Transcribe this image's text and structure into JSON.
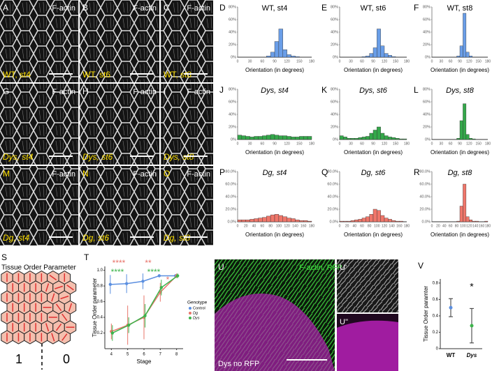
{
  "image_panels": [
    {
      "label": "A",
      "stain": "F-actin",
      "caption": "WT, st4"
    },
    {
      "label": "B",
      "stain": "F-actin",
      "caption": "WT, st6"
    },
    {
      "label": "C",
      "stain": "F-actin",
      "caption": "WT, st8"
    },
    {
      "label": "G",
      "stain": "F-actin",
      "caption": "Dys, st4"
    },
    {
      "label": "H",
      "stain": "F-actin",
      "caption": "Dys, st6"
    },
    {
      "label": "I",
      "stain": "F-actin",
      "caption": "Dys, st8"
    },
    {
      "label": "M",
      "stain": "F-actin",
      "caption": "Dg, st4"
    },
    {
      "label": "N",
      "stain": "F-actin",
      "caption": "Dg, st6"
    },
    {
      "label": "O",
      "stain": "F-actin",
      "caption": "Dg, st8"
    }
  ],
  "schematic": {
    "label": "S",
    "title": "Tissue Order Parameter",
    "left": "1",
    "right": "0"
  },
  "merge_panel": {
    "label": "U",
    "stain": "F-actin, RFP",
    "caption": "Dys no RFP",
    "inset1": "U'",
    "inset2": "U''"
  },
  "chart_data": [
    {
      "type": "histogram",
      "label": "D",
      "title": "WT, st4",
      "color": "#6a9ee8",
      "bins": [
        0,
        10,
        20,
        30,
        40,
        50,
        60,
        70,
        80,
        90,
        100,
        110,
        120,
        130,
        140,
        150,
        160,
        170,
        180
      ],
      "values": [
        0,
        0,
        0,
        0,
        0,
        0,
        0,
        2,
        8,
        25,
        45,
        12,
        4,
        2,
        1,
        0,
        0,
        0
      ],
      "xlim": [
        0,
        180
      ],
      "xticks": [
        0,
        30,
        60,
        90,
        120,
        150,
        180
      ],
      "ylim": [
        0,
        80
      ],
      "yticks": [
        {
          "value": 0,
          "label": "0%"
        },
        {
          "value": 20,
          "label": "20%"
        },
        {
          "value": 40,
          "label": "40%"
        },
        {
          "value": 60,
          "label": "60%"
        },
        {
          "value": 80,
          "label": "80%"
        }
      ],
      "xlabel": "Orientation (in degrees)"
    },
    {
      "type": "histogram",
      "label": "E",
      "title": "WT, st6",
      "color": "#6a9ee8",
      "bins": [
        0,
        10,
        20,
        30,
        40,
        50,
        60,
        70,
        80,
        90,
        100,
        110,
        120,
        130,
        140,
        150,
        160,
        170,
        180
      ],
      "values": [
        0,
        0,
        0,
        0,
        0,
        0,
        1,
        2,
        6,
        15,
        45,
        18,
        6,
        3,
        1,
        0,
        0,
        0
      ],
      "xlim": [
        0,
        180
      ],
      "xticks": [
        0,
        30,
        60,
        90,
        120,
        150,
        180
      ],
      "ylim": [
        0,
        80
      ],
      "yticks": [
        {
          "value": 0,
          "label": "0%"
        },
        {
          "value": 20,
          "label": "20%"
        },
        {
          "value": 40,
          "label": "40%"
        },
        {
          "value": 60,
          "label": "60%"
        },
        {
          "value": 80,
          "label": "80%"
        }
      ],
      "xlabel": "Orientation (in degrees)"
    },
    {
      "type": "histogram",
      "label": "F",
      "title": "WT, st8",
      "color": "#6a9ee8",
      "bins": [
        0,
        10,
        20,
        30,
        40,
        50,
        60,
        70,
        80,
        90,
        100,
        110,
        120,
        130,
        140,
        150,
        160,
        170,
        180
      ],
      "values": [
        0,
        0,
        0,
        0,
        0,
        0,
        0,
        0,
        2,
        18,
        70,
        8,
        2,
        0,
        0,
        0,
        0,
        0
      ],
      "xlim": [
        0,
        180
      ],
      "xticks": [
        0,
        30,
        60,
        90,
        120,
        150,
        180
      ],
      "ylim": [
        0,
        80
      ],
      "yticks": [
        {
          "value": 0,
          "label": "0%"
        },
        {
          "value": 20,
          "label": "20%"
        },
        {
          "value": 40,
          "label": "40%"
        },
        {
          "value": 60,
          "label": "60%"
        },
        {
          "value": 80,
          "label": "80%"
        }
      ],
      "xlabel": "Orientation (in degrees)"
    },
    {
      "type": "histogram",
      "label": "J",
      "title": "Dys, st4",
      "color": "#34a84a",
      "bins": [
        0,
        10,
        20,
        30,
        40,
        50,
        60,
        70,
        80,
        90,
        100,
        110,
        120,
        130,
        140,
        150,
        160,
        170,
        180
      ],
      "values": [
        7,
        6,
        5,
        4,
        5,
        5,
        6,
        7,
        8,
        7,
        6,
        6,
        5,
        4,
        4,
        5,
        5,
        5
      ],
      "xlim": [
        0,
        180
      ],
      "xticks": [
        0,
        30,
        60,
        90,
        120,
        150,
        180
      ],
      "ylim": [
        0,
        80
      ],
      "yticks": [
        {
          "value": 0,
          "label": "0%"
        },
        {
          "value": 20,
          "label": "20%"
        },
        {
          "value": 40,
          "label": "40%"
        },
        {
          "value": 60,
          "label": "60%"
        },
        {
          "value": 80,
          "label": "80%"
        }
      ],
      "xlabel": "Orientation (in degrees)"
    },
    {
      "type": "histogram",
      "label": "K",
      "title": "Dys, st6",
      "color": "#34a84a",
      "bins": [
        0,
        10,
        20,
        30,
        40,
        50,
        60,
        70,
        80,
        90,
        100,
        110,
        120,
        130,
        140,
        150,
        160,
        170,
        180
      ],
      "values": [
        6,
        4,
        2,
        2,
        2,
        3,
        4,
        5,
        10,
        15,
        20,
        10,
        6,
        4,
        3,
        2,
        1,
        1
      ],
      "xlim": [
        0,
        180
      ],
      "xticks": [
        0,
        30,
        60,
        90,
        120,
        150,
        180
      ],
      "ylim": [
        0,
        80
      ],
      "yticks": [
        {
          "value": 0,
          "label": "0%"
        },
        {
          "value": 20,
          "label": "20%"
        },
        {
          "value": 40,
          "label": "40%"
        },
        {
          "value": 60,
          "label": "60%"
        },
        {
          "value": 80,
          "label": "80%"
        }
      ],
      "xlabel": "Orientation (in degrees)"
    },
    {
      "type": "histogram",
      "label": "L",
      "title": "Dys, st8",
      "color": "#34a84a",
      "bins": [
        0,
        10,
        20,
        30,
        40,
        50,
        60,
        70,
        80,
        90,
        100,
        110,
        120,
        130,
        140,
        150,
        160,
        170,
        180
      ],
      "values": [
        0,
        0,
        0,
        0,
        0,
        0,
        0,
        0,
        2,
        30,
        57,
        8,
        2,
        1,
        0,
        0,
        0,
        0
      ],
      "xlim": [
        0,
        180
      ],
      "xticks": [
        0,
        30,
        60,
        90,
        120,
        150,
        180
      ],
      "ylim": [
        0,
        80
      ],
      "yticks": [
        {
          "value": 0,
          "label": "0%"
        },
        {
          "value": 20,
          "label": "20%"
        },
        {
          "value": 40,
          "label": "40%"
        },
        {
          "value": 60,
          "label": "60%"
        },
        {
          "value": 80,
          "label": "80%"
        }
      ],
      "xlabel": "Orientation (in degrees)"
    },
    {
      "type": "histogram",
      "label": "P",
      "title": "Dg, st4",
      "color": "#f0766a",
      "bins": [
        0,
        10,
        20,
        30,
        40,
        50,
        60,
        70,
        80,
        90,
        100,
        110,
        120,
        130,
        140,
        150,
        160,
        170,
        180
      ],
      "values": [
        3,
        3,
        3,
        4,
        5,
        6,
        7,
        9,
        11,
        12,
        10,
        8,
        6,
        5,
        3,
        2,
        2,
        1
      ],
      "xlim": [
        0,
        180
      ],
      "xticks": [
        0,
        20,
        40,
        60,
        80,
        100,
        120,
        140,
        160,
        180
      ],
      "ylim": [
        0,
        80
      ],
      "yticks": [
        {
          "value": 0,
          "label": "0.0%"
        },
        {
          "value": 20,
          "label": "20.0%"
        },
        {
          "value": 40,
          "label": "40.0%"
        },
        {
          "value": 60,
          "label": "60.0%"
        },
        {
          "value": 80,
          "label": "80.0%"
        }
      ],
      "xlabel": "Orientation (in degrees)"
    },
    {
      "type": "histogram",
      "label": "Q",
      "title": "Dg, st6",
      "color": "#f0766a",
      "bins": [
        0,
        10,
        20,
        30,
        40,
        50,
        60,
        70,
        80,
        90,
        100,
        110,
        120,
        130,
        140,
        150,
        160,
        170,
        180
      ],
      "values": [
        1,
        1,
        1,
        2,
        3,
        4,
        6,
        8,
        12,
        20,
        18,
        10,
        6,
        4,
        2,
        1,
        1,
        0
      ],
      "xlim": [
        0,
        180
      ],
      "xticks": [
        0,
        20,
        40,
        60,
        80,
        100,
        120,
        140,
        160,
        180
      ],
      "ylim": [
        0,
        80
      ],
      "yticks": [
        {
          "value": 0,
          "label": "0.0%"
        },
        {
          "value": 20,
          "label": "20.0%"
        },
        {
          "value": 40,
          "label": "40.0%"
        },
        {
          "value": 60,
          "label": "60.0%"
        },
        {
          "value": 80,
          "label": "80.0%"
        }
      ],
      "xlabel": "Orientation (in degrees)"
    },
    {
      "type": "histogram",
      "label": "R",
      "title": "Dg, st8",
      "color": "#f0766a",
      "bins": [
        0,
        10,
        20,
        30,
        40,
        50,
        60,
        70,
        80,
        90,
        100,
        110,
        120,
        130,
        140,
        150,
        160,
        170,
        180
      ],
      "values": [
        0,
        0,
        0,
        0,
        0,
        0,
        0,
        0,
        1,
        25,
        60,
        8,
        3,
        1,
        1,
        0,
        0,
        1
      ],
      "xlim": [
        0,
        180
      ],
      "xticks": [
        0,
        20,
        40,
        60,
        80,
        100,
        120,
        140,
        160,
        180
      ],
      "ylim": [
        0,
        80
      ],
      "yticks": [
        {
          "value": 0,
          "label": "0.0%"
        },
        {
          "value": 20,
          "label": "20.0%"
        },
        {
          "value": 40,
          "label": "40.0%"
        },
        {
          "value": 60,
          "label": "60.0%"
        },
        {
          "value": 80,
          "label": "80.0%"
        }
      ],
      "xlabel": "Orientation (in degrees)"
    },
    {
      "type": "line",
      "label": "T",
      "xlabel": "Stage",
      "ylabel": "Tissue Order parameter",
      "legend_title": "Genotype",
      "x": [
        4,
        5,
        6,
        7,
        8
      ],
      "xlim": [
        3.6,
        8.4
      ],
      "xticks": [
        4,
        5,
        6,
        7,
        8
      ],
      "ylim": [
        0,
        1.05
      ],
      "yticks": [
        0.2,
        0.4,
        0.6,
        0.8,
        {
          "value": 1,
          "label": "1.0"
        }
      ],
      "series": [
        {
          "name": "Control",
          "color": "#5b8fe0",
          "values": [
            0.82,
            0.83,
            0.86,
            0.93,
            0.93
          ],
          "errors": [
            0.12,
            0.12,
            0.1,
            0.02,
            0.02
          ]
        },
        {
          "name": "Dg",
          "color": "#e8746a",
          "values": [
            0.22,
            0.3,
            0.4,
            0.72,
            0.93
          ],
          "errors": [
            0.1,
            0.25,
            0.28,
            0.12,
            0.03
          ]
        },
        {
          "name": "Dys",
          "color": "#3cb44b",
          "values": [
            0.2,
            0.3,
            0.42,
            0.78,
            0.93
          ],
          "errors": [
            0.1,
            0.1,
            0.15,
            0.1,
            0.03
          ]
        }
      ],
      "annotations": [
        {
          "text": "****",
          "color": "#e8746a"
        },
        {
          "text": "**",
          "color": "#e8746a"
        },
        {
          "text": "*",
          "color": "#e8746a"
        },
        {
          "text": "****",
          "color": "#3cb44b"
        },
        {
          "text": "****",
          "color": "#3cb44b"
        }
      ]
    },
    {
      "type": "dot",
      "label": "V",
      "ylabel": "Tissue Order paramter",
      "categories": [
        "WT",
        "Dys"
      ],
      "values": [
        0.5,
        0.28
      ],
      "errors": [
        0.11,
        0.21
      ],
      "colors": [
        "#5b8fe0",
        "#3cb44b"
      ],
      "ylim": [
        0,
        0.85
      ],
      "yticks": [
        0,
        0.2,
        0.4,
        0.6,
        0.8
      ],
      "annotation": "*"
    }
  ]
}
